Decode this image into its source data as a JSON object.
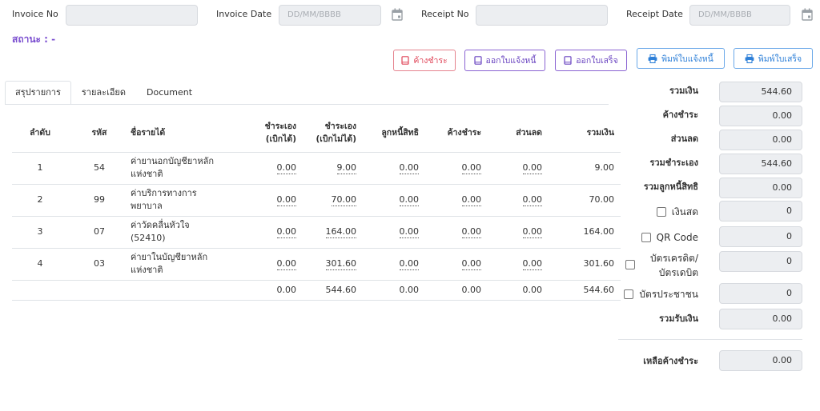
{
  "header": {
    "invoice_no_label": "Invoice No",
    "invoice_no_value": "",
    "invoice_date_label": "Invoice Date",
    "invoice_date_placeholder": "DD/MM/BBBB",
    "receipt_no_label": "Receipt No",
    "receipt_no_value": "",
    "receipt_date_label": "Receipt Date",
    "receipt_date_placeholder": "DD/MM/BBBB",
    "status_text": "สถานะ : -"
  },
  "actions": {
    "outstanding": "ค้างชำระ",
    "issue_invoice": "ออกใบแจ้งหนี้",
    "issue_receipt": "ออกใบเสร็จ",
    "print_invoice": "พิมพ์ใบแจ้งหนี้",
    "print_receipt": "พิมพ์ใบเสร็จ"
  },
  "tabs": [
    {
      "label": "สรุปรายการ",
      "active": true
    },
    {
      "label": "รายละเอียด",
      "active": false
    },
    {
      "label": "Document",
      "active": false
    }
  ],
  "table": {
    "headers": {
      "seq": "ลำดับ",
      "code": "รหัส",
      "name": "ชื่อรายได้",
      "self_reimb_1": "ชำระเอง",
      "self_reimb_2": "(เบิกได้)",
      "self_nonreimb_1": "ชำระเอง",
      "self_nonreimb_2": "(เบิกไม่ได้)",
      "debtor": "ลูกหนี้สิทธิ",
      "outstanding": "ค้างชำระ",
      "discount": "ส่วนลด",
      "total": "รวมเงิน"
    },
    "rows": [
      {
        "seq": "1",
        "code": "54",
        "name_1": "ค่ายานอกบัญชียาหลัก",
        "name_2": "แห่งชาติ",
        "self_reimb": "0.00",
        "self_nonreimb": "9.00",
        "debtor": "0.00",
        "outstanding": "0.00",
        "discount": "0.00",
        "total": "9.00"
      },
      {
        "seq": "2",
        "code": "99",
        "name_1": "ค่าบริการทางการ",
        "name_2": "พยาบาล",
        "self_reimb": "0.00",
        "self_nonreimb": "70.00",
        "debtor": "0.00",
        "outstanding": "0.00",
        "discount": "0.00",
        "total": "70.00"
      },
      {
        "seq": "3",
        "code": "07",
        "name_1": "ค่าวัดคลื่นหัวใจ",
        "name_2": "(52410)",
        "self_reimb": "0.00",
        "self_nonreimb": "164.00",
        "debtor": "0.00",
        "outstanding": "0.00",
        "discount": "0.00",
        "total": "164.00"
      },
      {
        "seq": "4",
        "code": "03",
        "name_1": "ค่ายาในบัญชียาหลัก",
        "name_2": "แห่งชาติ",
        "self_reimb": "0.00",
        "self_nonreimb": "301.60",
        "debtor": "0.00",
        "outstanding": "0.00",
        "discount": "0.00",
        "total": "301.60"
      }
    ],
    "totals": {
      "self_reimb": "0.00",
      "self_nonreimb": "544.60",
      "debtor": "0.00",
      "outstanding": "0.00",
      "discount": "0.00",
      "total": "544.60"
    }
  },
  "summary": {
    "total_label": "รวมเงิน",
    "total_value": "544.60",
    "outstanding_label": "ค้างชำระ",
    "outstanding_value": "0.00",
    "discount_label": "ส่วนลด",
    "discount_value": "0.00",
    "self_paid_label": "รวมชำระเอง",
    "self_paid_value": "544.60",
    "debtor_label": "รวมลูกหนี้สิทธิ",
    "debtor_value": "0.00",
    "cash_label": "เงินสด",
    "cash_value": "0",
    "qr_label": "QR Code",
    "qr_value": "0",
    "card_label_1": "บัตรเครดิต/",
    "card_label_2": "บัตรเดบิต",
    "card_value": "0",
    "id_card_label": "บัตรประชาชน",
    "id_card_value": "0",
    "received_label": "รวมรับเงิน",
    "received_value": "0.00",
    "remaining_label": "เหลือค้างชำระ",
    "remaining_value": "0.00"
  }
}
